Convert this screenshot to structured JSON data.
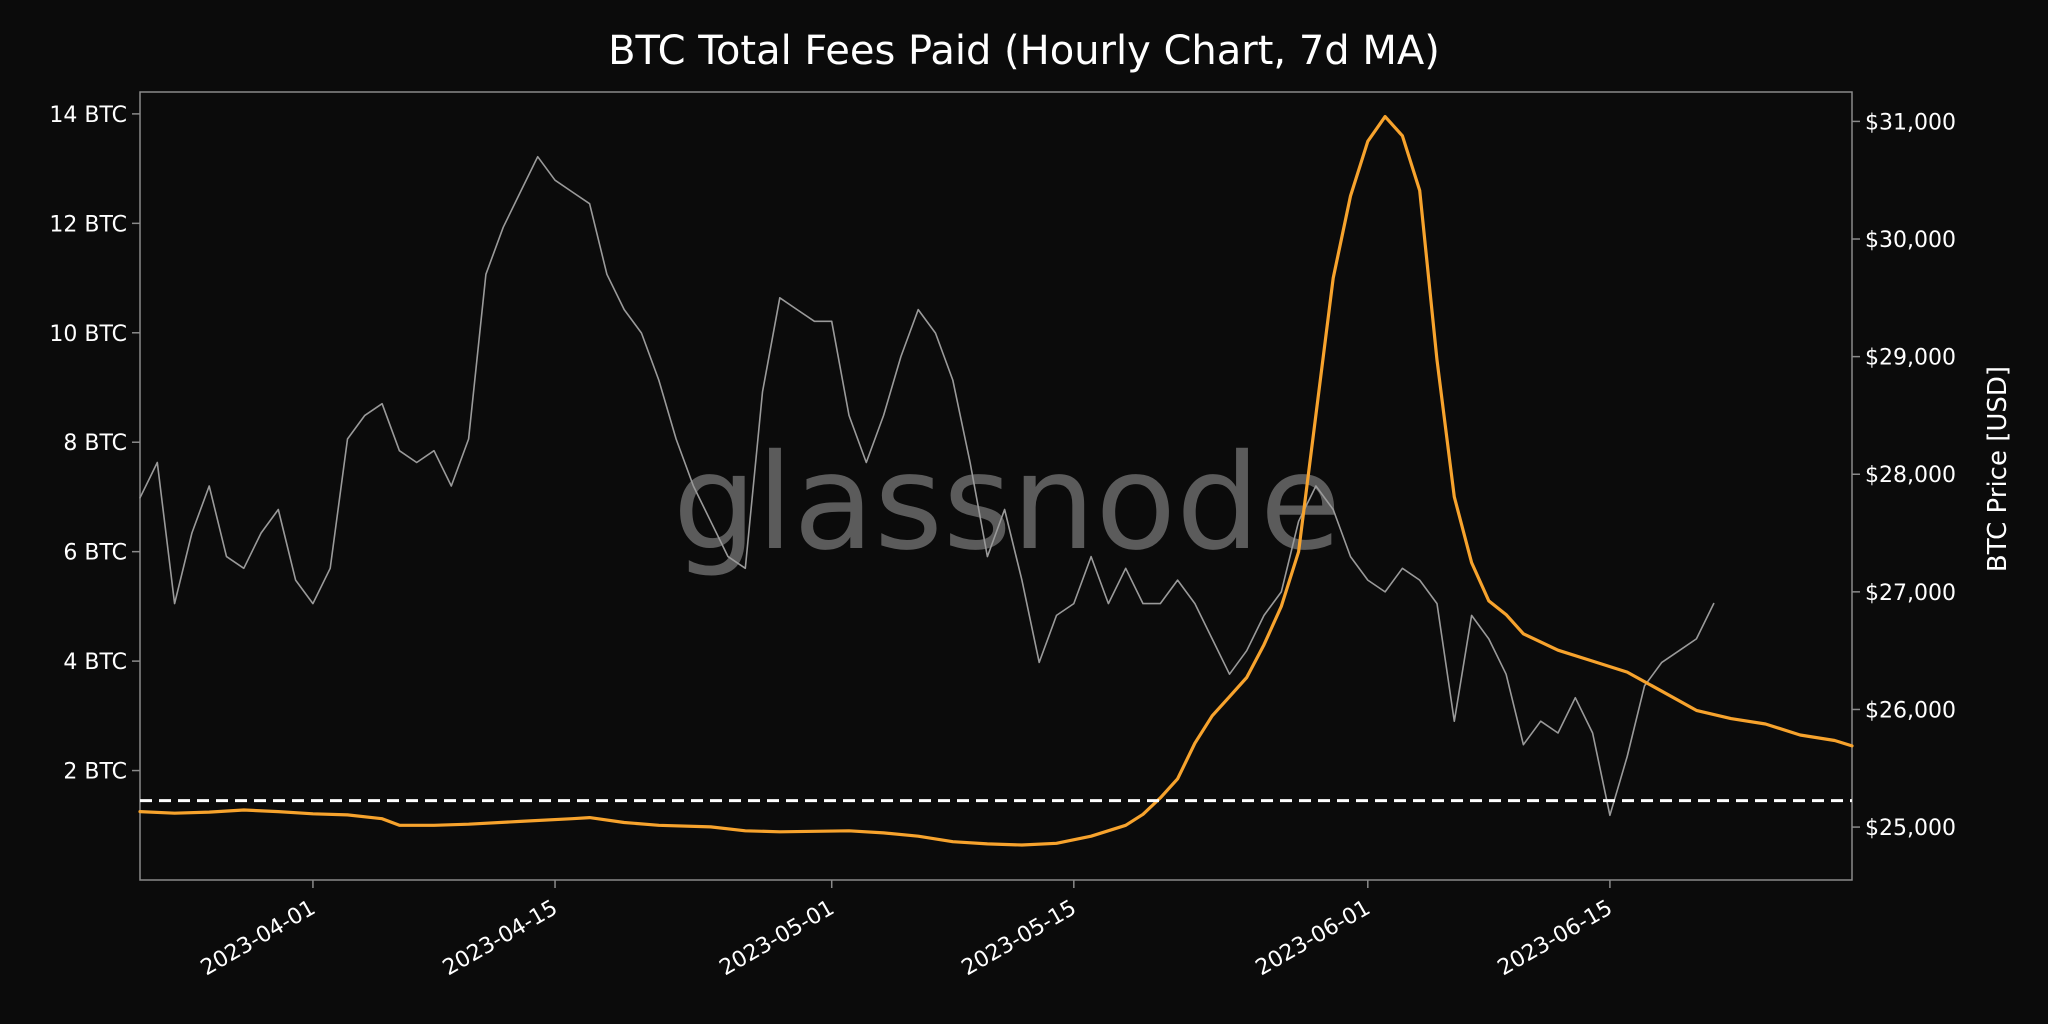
{
  "chart_data": {
    "type": "line",
    "title": "BTC Total Fees Paid (Hourly Chart, 7d MA)",
    "watermark": "glassnode",
    "x_range": [
      "2023-03-22",
      "2023-06-29"
    ],
    "x_ticks": [
      "2023-04-01",
      "2023-04-15",
      "2023-05-01",
      "2023-05-15",
      "2023-06-01",
      "2023-06-15"
    ],
    "y_left": {
      "label": "",
      "range": [
        0.0,
        14.4
      ],
      "ticks": [
        2,
        4,
        6,
        8,
        10,
        12,
        14
      ],
      "tick_labels": [
        "2 BTC",
        "4 BTC",
        "6 BTC",
        "8 BTC",
        "10 BTC",
        "12 BTC",
        "14 BTC"
      ]
    },
    "y_right": {
      "label": "BTC Price [USD]",
      "range": [
        24550,
        31250
      ],
      "ticks": [
        25000,
        26000,
        27000,
        28000,
        29000,
        30000,
        31000
      ],
      "tick_labels": [
        "$25,000",
        "$26,000",
        "$27,000",
        "$28,000",
        "$29,000",
        "$30,000",
        "$31,000"
      ]
    },
    "reference_line": {
      "axis": "left",
      "value": 1.45,
      "style": "dashed",
      "color": "#ffffff"
    },
    "grid": false,
    "colors": {
      "background": "#0b0b0b",
      "fees": "#f7a32d",
      "price": "#9a9a9a",
      "frame": "#8a8a8a"
    },
    "series": [
      {
        "axis": "left",
        "color": "#f7a32d",
        "points": [
          [
            "2023-03-22",
            1.25
          ],
          [
            "2023-03-24",
            1.22
          ],
          [
            "2023-03-26",
            1.24
          ],
          [
            "2023-03-28",
            1.28
          ],
          [
            "2023-03-30",
            1.25
          ],
          [
            "2023-04-01",
            1.21
          ],
          [
            "2023-04-03",
            1.19
          ],
          [
            "2023-04-05",
            1.12
          ],
          [
            "2023-04-06",
            1.0
          ],
          [
            "2023-04-08",
            1.0
          ],
          [
            "2023-04-10",
            1.02
          ],
          [
            "2023-04-13",
            1.07
          ],
          [
            "2023-04-16",
            1.12
          ],
          [
            "2023-04-17",
            1.14
          ],
          [
            "2023-04-19",
            1.05
          ],
          [
            "2023-04-21",
            1.0
          ],
          [
            "2023-04-24",
            0.97
          ],
          [
            "2023-04-26",
            0.9
          ],
          [
            "2023-04-28",
            0.88
          ],
          [
            "2023-04-30",
            0.89
          ],
          [
            "2023-05-02",
            0.9
          ],
          [
            "2023-05-04",
            0.86
          ],
          [
            "2023-05-06",
            0.8
          ],
          [
            "2023-05-08",
            0.7
          ],
          [
            "2023-05-10",
            0.66
          ],
          [
            "2023-05-12",
            0.64
          ],
          [
            "2023-05-14",
            0.67
          ],
          [
            "2023-05-16",
            0.8
          ],
          [
            "2023-05-18",
            1.0
          ],
          [
            "2023-05-19",
            1.2
          ],
          [
            "2023-05-20",
            1.5
          ],
          [
            "2023-05-21",
            1.85
          ],
          [
            "2023-05-22",
            2.5
          ],
          [
            "2023-05-23",
            3.0
          ],
          [
            "2023-05-24",
            3.35
          ],
          [
            "2023-05-25",
            3.7
          ],
          [
            "2023-05-26",
            4.3
          ],
          [
            "2023-05-27",
            5.0
          ],
          [
            "2023-05-28",
            6.0
          ],
          [
            "2023-05-29",
            8.5
          ],
          [
            "2023-05-30",
            11.0
          ],
          [
            "2023-05-31",
            12.5
          ],
          [
            "2023-06-01",
            13.5
          ],
          [
            "2023-06-02",
            13.95
          ],
          [
            "2023-06-03",
            13.6
          ],
          [
            "2023-06-04",
            12.6
          ],
          [
            "2023-06-05",
            9.5
          ],
          [
            "2023-06-06",
            7.0
          ],
          [
            "2023-06-07",
            5.8
          ],
          [
            "2023-06-08",
            5.1
          ],
          [
            "2023-06-09",
            4.85
          ],
          [
            "2023-06-10",
            4.5
          ],
          [
            "2023-06-12",
            4.2
          ],
          [
            "2023-06-14",
            4.0
          ],
          [
            "2023-06-16",
            3.8
          ],
          [
            "2023-06-18",
            3.45
          ],
          [
            "2023-06-20",
            3.1
          ],
          [
            "2023-06-22",
            2.95
          ],
          [
            "2023-06-24",
            2.85
          ],
          [
            "2023-06-26",
            2.65
          ],
          [
            "2023-06-28",
            2.55
          ],
          [
            "2023-06-29",
            2.45
          ]
        ]
      },
      {
        "axis": "right",
        "color": "#9a9a9a",
        "points": [
          [
            "2023-03-22",
            27800
          ],
          [
            "2023-03-23",
            28100
          ],
          [
            "2023-03-24",
            26900
          ],
          [
            "2023-03-25",
            27500
          ],
          [
            "2023-03-26",
            27900
          ],
          [
            "2023-03-27",
            27300
          ],
          [
            "2023-03-28",
            27200
          ],
          [
            "2023-03-29",
            27500
          ],
          [
            "2023-03-30",
            27700
          ],
          [
            "2023-03-31",
            27100
          ],
          [
            "2023-04-01",
            26900
          ],
          [
            "2023-04-02",
            27200
          ],
          [
            "2023-04-03",
            28300
          ],
          [
            "2023-04-04",
            28500
          ],
          [
            "2023-04-05",
            28600
          ],
          [
            "2023-04-06",
            28200
          ],
          [
            "2023-04-07",
            28100
          ],
          [
            "2023-04-08",
            28200
          ],
          [
            "2023-04-09",
            27900
          ],
          [
            "2023-04-10",
            28300
          ],
          [
            "2023-04-11",
            29700
          ],
          [
            "2023-04-12",
            30100
          ],
          [
            "2023-04-13",
            30400
          ],
          [
            "2023-04-14",
            30700
          ],
          [
            "2023-04-15",
            30500
          ],
          [
            "2023-04-16",
            30400
          ],
          [
            "2023-04-17",
            30300
          ],
          [
            "2023-04-18",
            29700
          ],
          [
            "2023-04-19",
            29400
          ],
          [
            "2023-04-20",
            29200
          ],
          [
            "2023-04-21",
            28800
          ],
          [
            "2023-04-22",
            28300
          ],
          [
            "2023-04-23",
            27900
          ],
          [
            "2023-04-24",
            27600
          ],
          [
            "2023-04-25",
            27300
          ],
          [
            "2023-04-26",
            27200
          ],
          [
            "2023-04-27",
            28700
          ],
          [
            "2023-04-28",
            29500
          ],
          [
            "2023-04-29",
            29400
          ],
          [
            "2023-04-30",
            29300
          ],
          [
            "2023-05-01",
            29300
          ],
          [
            "2023-05-02",
            28500
          ],
          [
            "2023-05-03",
            28100
          ],
          [
            "2023-05-04",
            28500
          ],
          [
            "2023-05-05",
            29000
          ],
          [
            "2023-05-06",
            29400
          ],
          [
            "2023-05-07",
            29200
          ],
          [
            "2023-05-08",
            28800
          ],
          [
            "2023-05-09",
            28100
          ],
          [
            "2023-05-10",
            27300
          ],
          [
            "2023-05-11",
            27700
          ],
          [
            "2023-05-12",
            27100
          ],
          [
            "2023-05-13",
            26400
          ],
          [
            "2023-05-14",
            26800
          ],
          [
            "2023-05-15",
            26900
          ],
          [
            "2023-05-16",
            27300
          ],
          [
            "2023-05-17",
            26900
          ],
          [
            "2023-05-18",
            27200
          ],
          [
            "2023-05-19",
            26900
          ],
          [
            "2023-05-20",
            26900
          ],
          [
            "2023-05-21",
            27100
          ],
          [
            "2023-05-22",
            26900
          ],
          [
            "2023-05-23",
            26600
          ],
          [
            "2023-05-24",
            26300
          ],
          [
            "2023-05-25",
            26500
          ],
          [
            "2023-05-26",
            26800
          ],
          [
            "2023-05-27",
            27000
          ],
          [
            "2023-05-28",
            27600
          ],
          [
            "2023-05-29",
            27900
          ],
          [
            "2023-05-30",
            27700
          ],
          [
            "2023-05-31",
            27300
          ],
          [
            "2023-06-01",
            27100
          ],
          [
            "2023-06-02",
            27000
          ],
          [
            "2023-06-03",
            27200
          ],
          [
            "2023-06-04",
            27100
          ],
          [
            "2023-06-05",
            26900
          ],
          [
            "2023-06-06",
            25900
          ],
          [
            "2023-06-07",
            26800
          ],
          [
            "2023-06-08",
            26600
          ],
          [
            "2023-06-09",
            26300
          ],
          [
            "2023-06-10",
            25700
          ],
          [
            "2023-06-11",
            25900
          ],
          [
            "2023-06-12",
            25800
          ],
          [
            "2023-06-13",
            26100
          ],
          [
            "2023-06-14",
            25800
          ],
          [
            "2023-06-15",
            25100
          ],
          [
            "2023-06-16",
            25600
          ],
          [
            "2023-06-17",
            26200
          ],
          [
            "2023-06-18",
            26400
          ],
          [
            "2023-06-19",
            26500
          ],
          [
            "2023-06-20",
            26600
          ],
          [
            "2023-06-21",
            26900
          ]
        ]
      }
    ]
  }
}
